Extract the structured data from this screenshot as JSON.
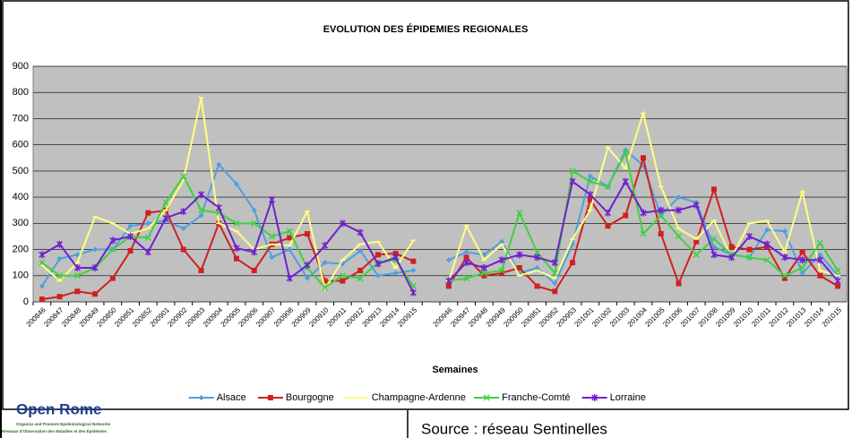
{
  "chart_data": {
    "type": "line",
    "title": "EVOLUTION DES ÉPIDEMIES REGIONALES",
    "x_label": "Semaines",
    "categories": [
      "200846",
      "200847",
      "200848",
      "200849",
      "200850",
      "200851",
      "200852",
      "200901",
      "200902",
      "200903",
      "200904",
      "200905",
      "200906",
      "200907",
      "200908",
      "200909",
      "200910",
      "200911",
      "200912",
      "200913",
      "200914",
      "200915",
      null,
      "200946",
      "200947",
      "200948",
      "200949",
      "200950",
      "200951",
      "200952",
      "200953",
      "201001",
      "201002",
      "201003",
      "201004",
      "201005",
      "201006",
      "201007",
      "201008",
      "201009",
      "201010",
      "201011",
      "201012",
      "201013",
      "201014",
      "201015"
    ],
    "series": [
      {
        "name": "Alsace",
        "color": "#4f9fe0",
        "values": [
          60,
          165,
          180,
          200,
          200,
          290,
          300,
          310,
          280,
          330,
          525,
          450,
          350,
          170,
          200,
          90,
          150,
          145,
          195,
          100,
          110,
          120,
          null,
          160,
          190,
          180,
          230,
          110,
          130,
          70,
          220,
          480,
          440,
          580,
          520,
          330,
          400,
          380,
          210,
          180,
          170,
          275,
          270,
          110,
          180,
          100
        ]
      },
      {
        "name": "Bourgogne",
        "color": "#d02020",
        "values": [
          10,
          20,
          40,
          30,
          90,
          195,
          340,
          350,
          200,
          120,
          300,
          165,
          120,
          220,
          245,
          260,
          80,
          80,
          120,
          180,
          185,
          155,
          null,
          60,
          170,
          100,
          110,
          130,
          60,
          40,
          150,
          390,
          290,
          330,
          550,
          260,
          70,
          230,
          430,
          210,
          200,
          210,
          90,
          190,
          100,
          60
        ]
      },
      {
        "name": "Champagne-Ardenne",
        "color": "#ffff80",
        "values": [
          140,
          80,
          150,
          325,
          300,
          260,
          280,
          350,
          465,
          780,
          300,
          270,
          200,
          220,
          215,
          345,
          50,
          160,
          220,
          230,
          130,
          235,
          null,
          80,
          290,
          160,
          220,
          100,
          120,
          90,
          240,
          350,
          590,
          510,
          720,
          440,
          280,
          240,
          310,
          170,
          300,
          310,
          190,
          420,
          120,
          100
        ]
      },
      {
        "name": "Franche-Comté",
        "color": "#40d040",
        "values": [
          150,
          100,
          100,
          130,
          200,
          250,
          245,
          380,
          480,
          350,
          340,
          300,
          300,
          250,
          270,
          130,
          55,
          100,
          90,
          150,
          160,
          60,
          null,
          80,
          90,
          110,
          120,
          340,
          190,
          110,
          500,
          460,
          440,
          570,
          260,
          330,
          250,
          180,
          240,
          180,
          170,
          160,
          100,
          130,
          225,
          120
        ]
      },
      {
        "name": "Lorraine",
        "color": "#7020d0",
        "values": [
          180,
          220,
          130,
          130,
          235,
          250,
          190,
          320,
          345,
          410,
          360,
          205,
          190,
          390,
          90,
          140,
          215,
          300,
          265,
          145,
          170,
          35,
          null,
          80,
          150,
          130,
          160,
          180,
          170,
          150,
          460,
          410,
          340,
          460,
          340,
          350,
          350,
          370,
          180,
          170,
          250,
          220,
          170,
          160,
          160,
          80
        ]
      }
    ],
    "ylim": [
      0,
      900
    ],
    "yticks": [
      0,
      100,
      200,
      300,
      400,
      500,
      600,
      700,
      800,
      900
    ],
    "grid": true,
    "legend": "bottom",
    "plot_color": "#c0c0c0"
  },
  "logo": {
    "name": "Open Rome",
    "tagline": [
      "Organize and Promote Epidemiological Networks",
      "Réseaux d'Observation des Maladies et des Epidémies"
    ]
  },
  "source": "Source : réseau Sentinelles"
}
